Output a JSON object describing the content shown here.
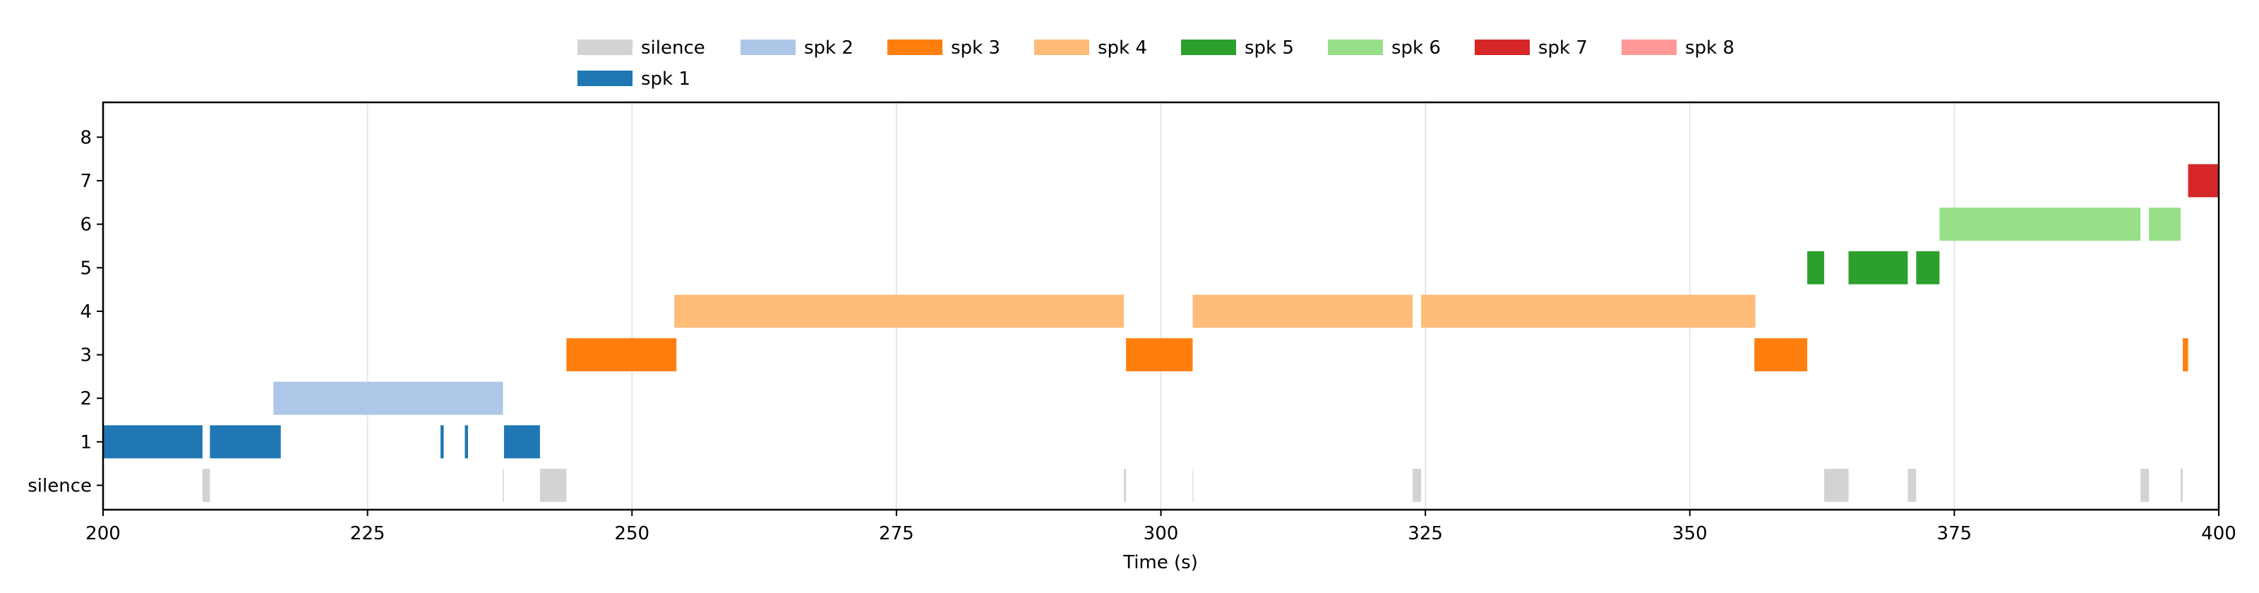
{
  "chart_data": {
    "type": "timeline",
    "xlabel": "Time (s)",
    "ylabel": "",
    "xlim": [
      200,
      400
    ],
    "ylim": [
      -0.56,
      8.8
    ],
    "xticks": [
      200,
      225,
      250,
      275,
      300,
      325,
      350,
      375,
      400
    ],
    "yticks": [
      {
        "value": 0,
        "label": "silence"
      },
      {
        "value": 1,
        "label": "1"
      },
      {
        "value": 2,
        "label": "2"
      },
      {
        "value": 3,
        "label": "3"
      },
      {
        "value": 4,
        "label": "4"
      },
      {
        "value": 5,
        "label": "5"
      },
      {
        "value": 6,
        "label": "6"
      },
      {
        "value": 7,
        "label": "7"
      },
      {
        "value": 8,
        "label": "8"
      }
    ],
    "grid": "vertical",
    "legend_placement": "top-center, outside",
    "series": [
      {
        "name": "silence",
        "row": 0,
        "color": "#d3d3d3",
        "segments": [
          [
            209.4,
            210.1
          ],
          [
            237.8,
            237.9
          ],
          [
            241.3,
            243.8
          ],
          [
            296.5,
            296.7
          ],
          [
            303.0,
            303.05
          ],
          [
            323.8,
            324.6
          ],
          [
            362.7,
            365.0
          ],
          [
            370.6,
            371.4
          ],
          [
            392.6,
            393.4
          ],
          [
            396.4,
            396.6
          ]
        ]
      },
      {
        "name": "spk 2",
        "row": 2,
        "color": "#aec7e8",
        "segments": [
          [
            216.1,
            237.8
          ]
        ]
      },
      {
        "name": "spk 3",
        "row": 3,
        "color": "#ff7f0e",
        "segments": [
          [
            243.8,
            254.2
          ],
          [
            296.7,
            303.0
          ],
          [
            356.1,
            361.1
          ],
          [
            396.6,
            397.1
          ]
        ]
      },
      {
        "name": "spk 4",
        "row": 4,
        "color": "#ffbb78",
        "segments": [
          [
            254.0,
            296.5
          ],
          [
            303.0,
            323.8
          ],
          [
            324.6,
            356.2
          ]
        ]
      },
      {
        "name": "spk 5",
        "row": 5,
        "color": "#2ca02c",
        "segments": [
          [
            361.1,
            362.7
          ],
          [
            365.0,
            370.6
          ],
          [
            371.4,
            373.6
          ]
        ]
      },
      {
        "name": "spk 6",
        "row": 6,
        "color": "#98df8a",
        "segments": [
          [
            373.6,
            392.6
          ],
          [
            393.4,
            396.4
          ]
        ]
      },
      {
        "name": "spk 7",
        "row": 7,
        "color": "#d62728",
        "segments": [
          [
            397.1,
            400
          ]
        ]
      },
      {
        "name": "spk 8",
        "row": 8,
        "color": "#ff9896",
        "segments": []
      },
      {
        "name": "spk 1",
        "row": 1,
        "color": "#1f77b4",
        "segments": [
          [
            200,
            209.4
          ],
          [
            210.1,
            216.8
          ],
          [
            231.9,
            232.2
          ],
          [
            234.2,
            234.5
          ],
          [
            237.9,
            241.3
          ]
        ]
      }
    ]
  }
}
